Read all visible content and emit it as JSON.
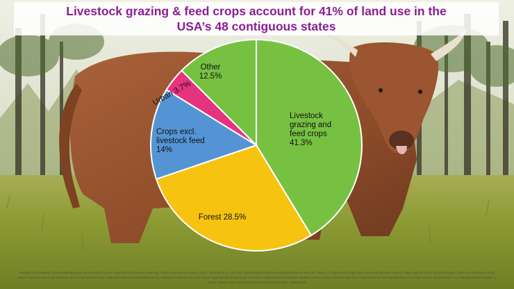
{
  "title": {
    "line1": "Livestock grazing & feed crops account for 41% of land use in the",
    "line2": "USA’s 48 contiguous states"
  },
  "chart_data": {
    "type": "pie",
    "title": "Livestock grazing & feed crops account for 41% of land use in the USA’s 48 contiguous states",
    "slices": [
      {
        "label": "Livestock grazing and feed crops",
        "value": 41.3,
        "value_text": "41.3%",
        "color": "#77c142"
      },
      {
        "label": "Forest",
        "value": 28.5,
        "value_text": "28.5%",
        "color": "#f7c311"
      },
      {
        "label": "Crops excl. livestock feed",
        "value": 14,
        "value_text": "14%",
        "color": "#5594d4"
      },
      {
        "label": "Urban",
        "value": 3.7,
        "value_text": "3.7%",
        "color": "#e6337f"
      },
      {
        "label": "Other",
        "value": 12.5,
        "value_text": "12.5%",
        "color": "#77c142"
      }
    ],
    "legend": "none"
  },
  "credits": "Prepared by terrastando.net and planetaryvegan.net, Nov 2018 | Source: Dave Merrill and Lauren Leatherby, “Here’s How America Uses Its Land” - Bloomberg, 31 July 2018, https://www.bloomberg.com/graphics/2018-us-land-use/, citing U.S. Department of Agriculture, Economic Research Service: Major Uses of Land in the United States, 2012; U.S. Department of the Interior: National Land Cover Database, 2011; U.S. Census Bureau; State governments; statesymbolsusa.org; American Farmland Trust; Golf Course Superintendents Association of America; USDA National Agricultural Statistics Service; USDA Census of Agriculture; U.S. Bureau of Land Management; U.S. Forest Service; Weyerhaeuser Co.; The Land Report magazine | Image: Hoover Tung, Cow grazing on the Arizona green grass, Shutterstock",
  "colors": {
    "title_text": "#8b1d96",
    "grass": "#9aa83a",
    "sky": "#ecefe0",
    "cow": "#9a5530"
  },
  "background_picture": "brown-cow-grazing-in-pine-forest"
}
